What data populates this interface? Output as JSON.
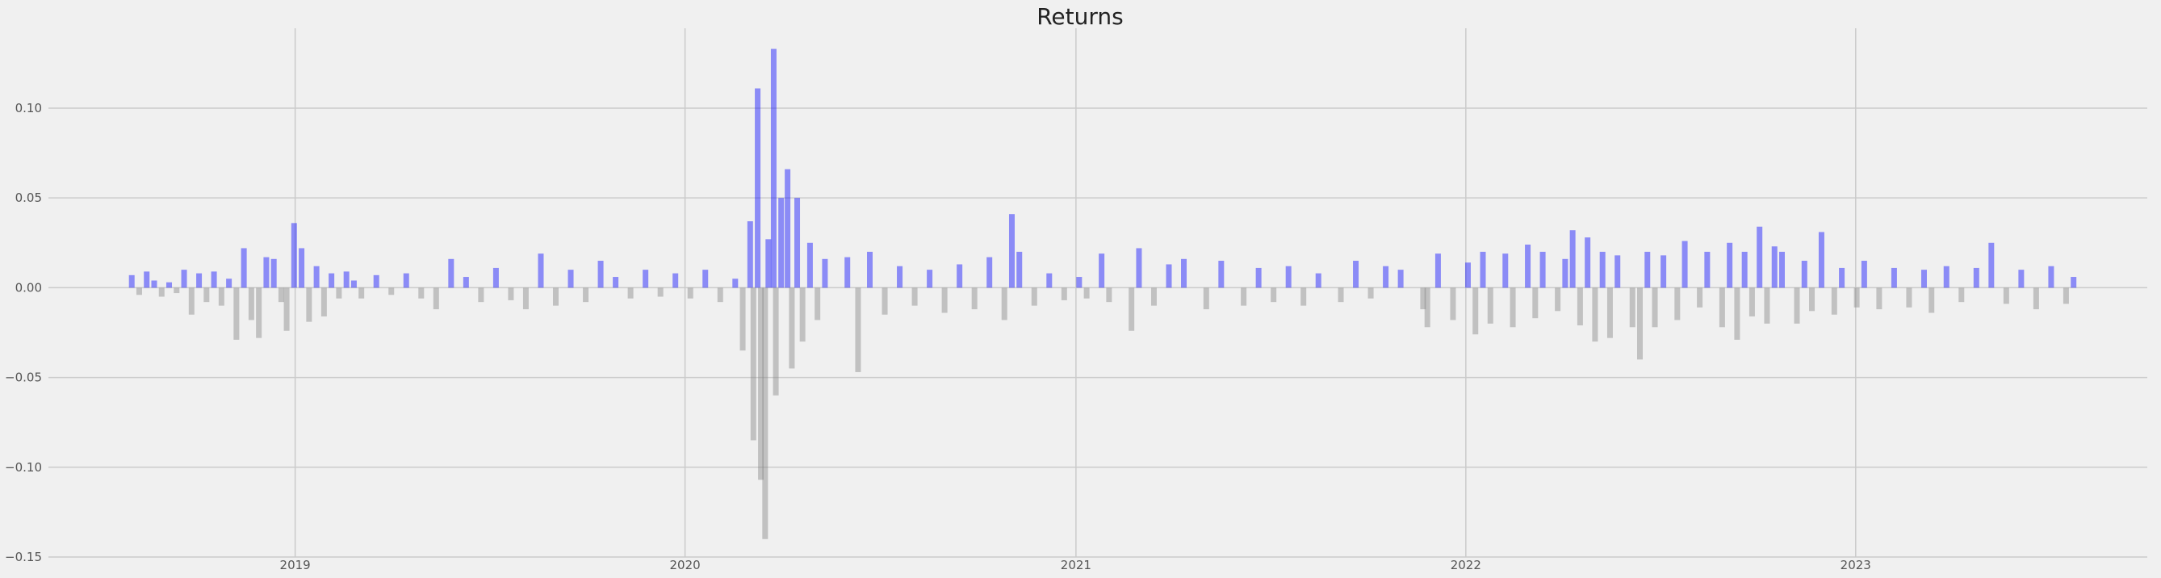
{
  "chart_data": {
    "type": "bar",
    "title": "Returns",
    "xlabel": "",
    "ylabel": "",
    "grid": true,
    "x_range": [
      "2018-05-15",
      "2023-10-01"
    ],
    "ylim": [
      -0.15,
      0.14
    ],
    "x_ticks": [
      "2019",
      "2020",
      "2021",
      "2022",
      "2023"
    ],
    "y_ticks": [
      "0.10",
      "0.05",
      "0.00",
      "−0.05",
      "−0.10",
      "−0.15"
    ],
    "colors": {
      "positive": "#0000ff",
      "negative": "#808080",
      "background": "#f0f0f0",
      "grid": "#cbcbcb"
    },
    "series": [
      {
        "values": [
          {
            "x": "2018-08-01",
            "y": 0.007
          },
          {
            "x": "2018-08-08",
            "y": -0.004
          },
          {
            "x": "2018-08-15",
            "y": 0.009
          },
          {
            "x": "2018-08-22",
            "y": 0.004
          },
          {
            "x": "2018-08-29",
            "y": -0.005
          },
          {
            "x": "2018-09-05",
            "y": 0.003
          },
          {
            "x": "2018-09-12",
            "y": -0.003
          },
          {
            "x": "2018-09-19",
            "y": 0.01
          },
          {
            "x": "2018-09-26",
            "y": -0.015
          },
          {
            "x": "2018-10-03",
            "y": 0.008
          },
          {
            "x": "2018-10-10",
            "y": -0.008
          },
          {
            "x": "2018-10-17",
            "y": 0.009
          },
          {
            "x": "2018-10-24",
            "y": -0.01
          },
          {
            "x": "2018-10-31",
            "y": 0.005
          },
          {
            "x": "2018-11-07",
            "y": -0.029
          },
          {
            "x": "2018-11-14",
            "y": 0.022
          },
          {
            "x": "2018-11-21",
            "y": -0.018
          },
          {
            "x": "2018-11-28",
            "y": -0.028
          },
          {
            "x": "2018-12-05",
            "y": 0.017
          },
          {
            "x": "2018-12-12",
            "y": 0.016
          },
          {
            "x": "2018-12-19",
            "y": -0.008
          },
          {
            "x": "2018-12-24",
            "y": -0.024
          },
          {
            "x": "2018-12-31",
            "y": 0.036
          },
          {
            "x": "2019-01-07",
            "y": 0.022
          },
          {
            "x": "2019-01-14",
            "y": -0.019
          },
          {
            "x": "2019-01-21",
            "y": 0.012
          },
          {
            "x": "2019-01-28",
            "y": -0.016
          },
          {
            "x": "2019-02-04",
            "y": 0.008
          },
          {
            "x": "2019-02-11",
            "y": -0.006
          },
          {
            "x": "2019-02-18",
            "y": 0.009
          },
          {
            "x": "2019-02-25",
            "y": 0.004
          },
          {
            "x": "2019-03-04",
            "y": -0.006
          },
          {
            "x": "2019-03-18",
            "y": 0.007
          },
          {
            "x": "2019-04-01",
            "y": -0.004
          },
          {
            "x": "2019-04-15",
            "y": 0.008
          },
          {
            "x": "2019-04-29",
            "y": -0.006
          },
          {
            "x": "2019-05-13",
            "y": -0.012
          },
          {
            "x": "2019-05-27",
            "y": 0.016
          },
          {
            "x": "2019-06-10",
            "y": 0.006
          },
          {
            "x": "2019-06-24",
            "y": -0.008
          },
          {
            "x": "2019-07-08",
            "y": 0.011
          },
          {
            "x": "2019-07-22",
            "y": -0.007
          },
          {
            "x": "2019-08-05",
            "y": -0.012
          },
          {
            "x": "2019-08-19",
            "y": 0.019
          },
          {
            "x": "2019-09-02",
            "y": -0.01
          },
          {
            "x": "2019-09-16",
            "y": 0.01
          },
          {
            "x": "2019-09-30",
            "y": -0.008
          },
          {
            "x": "2019-10-14",
            "y": 0.015
          },
          {
            "x": "2019-10-28",
            "y": 0.006
          },
          {
            "x": "2019-11-11",
            "y": -0.006
          },
          {
            "x": "2019-11-25",
            "y": 0.01
          },
          {
            "x": "2019-12-09",
            "y": -0.005
          },
          {
            "x": "2019-12-23",
            "y": 0.008
          },
          {
            "x": "2020-01-06",
            "y": -0.006
          },
          {
            "x": "2020-01-20",
            "y": 0.01
          },
          {
            "x": "2020-02-03",
            "y": -0.008
          },
          {
            "x": "2020-02-17",
            "y": 0.005
          },
          {
            "x": "2020-02-24",
            "y": -0.035
          },
          {
            "x": "2020-03-02",
            "y": 0.037
          },
          {
            "x": "2020-03-05",
            "y": -0.085
          },
          {
            "x": "2020-03-09",
            "y": 0.111
          },
          {
            "x": "2020-03-12",
            "y": -0.107
          },
          {
            "x": "2020-03-16",
            "y": -0.14
          },
          {
            "x": "2020-03-19",
            "y": 0.027
          },
          {
            "x": "2020-03-24",
            "y": 0.133
          },
          {
            "x": "2020-03-26",
            "y": -0.06
          },
          {
            "x": "2020-03-31",
            "y": 0.05
          },
          {
            "x": "2020-04-06",
            "y": 0.066
          },
          {
            "x": "2020-04-10",
            "y": -0.045
          },
          {
            "x": "2020-04-15",
            "y": 0.05
          },
          {
            "x": "2020-04-20",
            "y": -0.03
          },
          {
            "x": "2020-04-27",
            "y": 0.025
          },
          {
            "x": "2020-05-04",
            "y": -0.018
          },
          {
            "x": "2020-05-11",
            "y": 0.016
          },
          {
            "x": "2020-06-01",
            "y": 0.017
          },
          {
            "x": "2020-06-11",
            "y": -0.047
          },
          {
            "x": "2020-06-22",
            "y": 0.02
          },
          {
            "x": "2020-07-06",
            "y": -0.015
          },
          {
            "x": "2020-07-20",
            "y": 0.012
          },
          {
            "x": "2020-08-03",
            "y": -0.01
          },
          {
            "x": "2020-08-17",
            "y": 0.01
          },
          {
            "x": "2020-08-31",
            "y": -0.014
          },
          {
            "x": "2020-09-14",
            "y": 0.013
          },
          {
            "x": "2020-09-28",
            "y": -0.012
          },
          {
            "x": "2020-10-12",
            "y": 0.017
          },
          {
            "x": "2020-10-26",
            "y": -0.018
          },
          {
            "x": "2020-11-02",
            "y": 0.041
          },
          {
            "x": "2020-11-09",
            "y": 0.02
          },
          {
            "x": "2020-11-23",
            "y": -0.01
          },
          {
            "x": "2020-12-07",
            "y": 0.008
          },
          {
            "x": "2020-12-21",
            "y": -0.007
          },
          {
            "x": "2021-01-04",
            "y": 0.006
          },
          {
            "x": "2021-01-11",
            "y": -0.006
          },
          {
            "x": "2021-01-25",
            "y": 0.019
          },
          {
            "x": "2021-02-01",
            "y": -0.008
          },
          {
            "x": "2021-02-22",
            "y": -0.024
          },
          {
            "x": "2021-03-01",
            "y": 0.022
          },
          {
            "x": "2021-03-15",
            "y": -0.01
          },
          {
            "x": "2021-03-29",
            "y": 0.013
          },
          {
            "x": "2021-04-12",
            "y": 0.016
          },
          {
            "x": "2021-05-03",
            "y": -0.012
          },
          {
            "x": "2021-05-17",
            "y": 0.015
          },
          {
            "x": "2021-06-07",
            "y": -0.01
          },
          {
            "x": "2021-06-21",
            "y": 0.011
          },
          {
            "x": "2021-07-05",
            "y": -0.008
          },
          {
            "x": "2021-07-19",
            "y": 0.012
          },
          {
            "x": "2021-08-02",
            "y": -0.01
          },
          {
            "x": "2021-08-16",
            "y": 0.008
          },
          {
            "x": "2021-09-06",
            "y": -0.008
          },
          {
            "x": "2021-09-20",
            "y": 0.015
          },
          {
            "x": "2021-10-04",
            "y": -0.006
          },
          {
            "x": "2021-10-18",
            "y": 0.012
          },
          {
            "x": "2021-11-01",
            "y": 0.01
          },
          {
            "x": "2021-11-22",
            "y": -0.012
          },
          {
            "x": "2021-11-26",
            "y": -0.022
          },
          {
            "x": "2021-12-06",
            "y": 0.019
          },
          {
            "x": "2021-12-20",
            "y": -0.018
          },
          {
            "x": "2022-01-03",
            "y": 0.014
          },
          {
            "x": "2022-01-10",
            "y": -0.026
          },
          {
            "x": "2022-01-17",
            "y": 0.02
          },
          {
            "x": "2022-01-24",
            "y": -0.02
          },
          {
            "x": "2022-02-07",
            "y": 0.019
          },
          {
            "x": "2022-02-14",
            "y": -0.022
          },
          {
            "x": "2022-02-28",
            "y": 0.024
          },
          {
            "x": "2022-03-07",
            "y": -0.017
          },
          {
            "x": "2022-03-14",
            "y": 0.02
          },
          {
            "x": "2022-03-28",
            "y": -0.013
          },
          {
            "x": "2022-04-04",
            "y": 0.016
          },
          {
            "x": "2022-04-11",
            "y": 0.032
          },
          {
            "x": "2022-04-18",
            "y": -0.021
          },
          {
            "x": "2022-04-25",
            "y": 0.028
          },
          {
            "x": "2022-05-02",
            "y": -0.03
          },
          {
            "x": "2022-05-09",
            "y": 0.02
          },
          {
            "x": "2022-05-16",
            "y": -0.028
          },
          {
            "x": "2022-05-23",
            "y": 0.018
          },
          {
            "x": "2022-06-06",
            "y": -0.022
          },
          {
            "x": "2022-06-13",
            "y": -0.04
          },
          {
            "x": "2022-06-20",
            "y": 0.02
          },
          {
            "x": "2022-06-27",
            "y": -0.022
          },
          {
            "x": "2022-07-05",
            "y": 0.018
          },
          {
            "x": "2022-07-18",
            "y": -0.018
          },
          {
            "x": "2022-07-25",
            "y": 0.026
          },
          {
            "x": "2022-08-08",
            "y": -0.011
          },
          {
            "x": "2022-08-15",
            "y": 0.02
          },
          {
            "x": "2022-08-29",
            "y": -0.022
          },
          {
            "x": "2022-09-05",
            "y": 0.025
          },
          {
            "x": "2022-09-12",
            "y": -0.029
          },
          {
            "x": "2022-09-19",
            "y": 0.02
          },
          {
            "x": "2022-09-26",
            "y": -0.016
          },
          {
            "x": "2022-10-03",
            "y": 0.034
          },
          {
            "x": "2022-10-10",
            "y": -0.02
          },
          {
            "x": "2022-10-17",
            "y": 0.023
          },
          {
            "x": "2022-10-24",
            "y": 0.02
          },
          {
            "x": "2022-11-07",
            "y": -0.02
          },
          {
            "x": "2022-11-14",
            "y": 0.015
          },
          {
            "x": "2022-11-21",
            "y": -0.013
          },
          {
            "x": "2022-11-30",
            "y": 0.031
          },
          {
            "x": "2022-12-12",
            "y": -0.015
          },
          {
            "x": "2022-12-19",
            "y": 0.011
          },
          {
            "x": "2023-01-02",
            "y": -0.011
          },
          {
            "x": "2023-01-09",
            "y": 0.015
          },
          {
            "x": "2023-01-23",
            "y": -0.012
          },
          {
            "x": "2023-02-06",
            "y": 0.011
          },
          {
            "x": "2023-02-20",
            "y": -0.011
          },
          {
            "x": "2023-03-06",
            "y": 0.01
          },
          {
            "x": "2023-03-13",
            "y": -0.014
          },
          {
            "x": "2023-03-27",
            "y": 0.012
          },
          {
            "x": "2023-04-10",
            "y": -0.008
          },
          {
            "x": "2023-04-24",
            "y": 0.011
          },
          {
            "x": "2023-05-08",
            "y": 0.025
          },
          {
            "x": "2023-05-22",
            "y": -0.009
          },
          {
            "x": "2023-06-05",
            "y": 0.01
          },
          {
            "x": "2023-06-19",
            "y": -0.012
          },
          {
            "x": "2023-07-03",
            "y": 0.012
          },
          {
            "x": "2023-07-17",
            "y": -0.009
          },
          {
            "x": "2023-07-24",
            "y": 0.006
          }
        ]
      }
    ]
  }
}
